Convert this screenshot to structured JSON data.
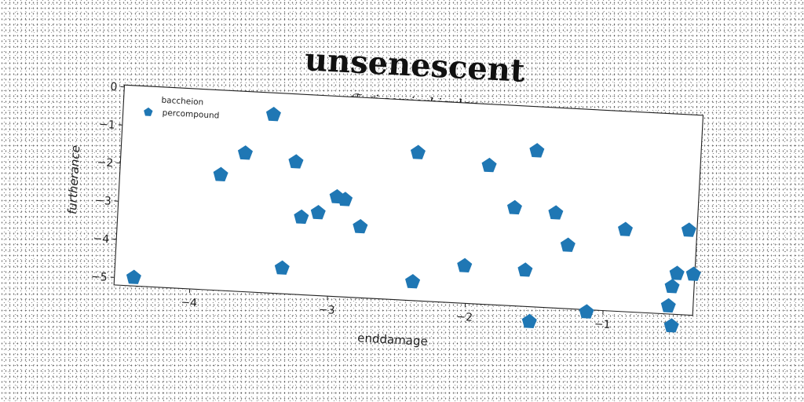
{
  "chart_data": {
    "type": "scatter",
    "title": "unsenescent",
    "subtitle": "ℱ 𝒻 i semiorbicular",
    "xlabel": "enddamage",
    "ylabel": "furtherance",
    "xlim": [
      -4.55,
      -0.35
    ],
    "ylim": [
      -5.2,
      0.05
    ],
    "xticks": [
      -4,
      -3,
      -2,
      -1
    ],
    "xtick_labels": [
      "−4",
      "−3",
      "−2",
      "−1"
    ],
    "yticks": [
      0,
      -1,
      -2,
      -3,
      -4,
      -5
    ],
    "ytick_labels": [
      "0",
      "−1",
      "−2",
      "−3",
      "−4",
      "−5"
    ],
    "grid": false,
    "legend": {
      "position": "top-left",
      "entries": [
        "baccheion",
        "percompound"
      ]
    },
    "colors": {
      "marker": "#1f77b4"
    },
    "series": [
      {
        "name": "percompound",
        "marker": "pentagon",
        "x": [
          -4.41,
          -3.82,
          -3.65,
          -3.46,
          -3.34,
          -3.28,
          -3.22,
          -3.1,
          -2.97,
          -2.91,
          -2.79,
          -2.4,
          -2.39,
          -2.02,
          -1.88,
          -1.68,
          -1.58,
          -1.54,
          -1.53,
          -1.38,
          -1.28,
          -1.12,
          -0.87,
          -0.53,
          -0.51,
          -0.5,
          -0.48,
          -0.41,
          -0.36
        ],
        "y": [
          -4.98,
          -2.17,
          -1.57,
          -0.52,
          -4.53,
          -1.73,
          -3.17,
          -3.03,
          -2.59,
          -2.65,
          -3.34,
          -1.32,
          -4.71,
          -4.22,
          -1.56,
          -2.63,
          -4.25,
          -1.11,
          -5.59,
          -2.71,
          -3.54,
          -5.26,
          -3.05,
          -4.99,
          -4.48,
          -5.51,
          -4.13,
          -2.98,
          -4.13
        ]
      }
    ]
  }
}
